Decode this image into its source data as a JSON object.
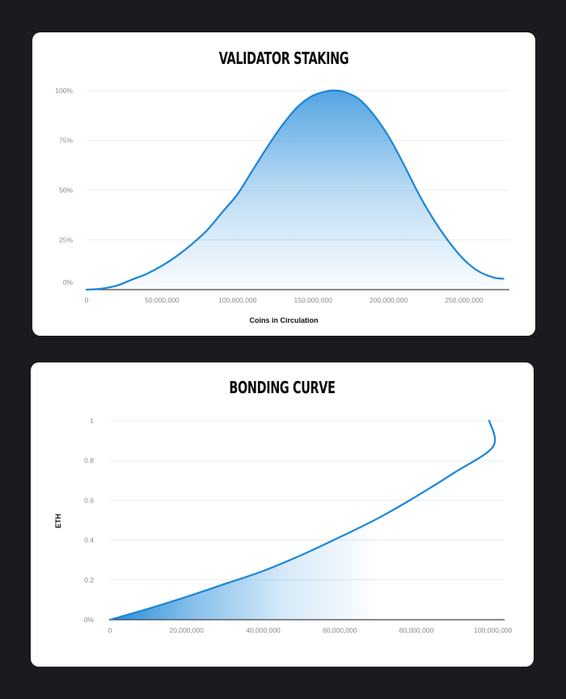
{
  "chart_data": [
    {
      "type": "area",
      "title": "VALIDATOR STAKING",
      "xlabel": "Coins in Circulation",
      "ylabel": "",
      "xlim": [
        0,
        280000000
      ],
      "ylim": [
        0,
        100
      ],
      "x_ticks": [
        0,
        50000000,
        100000000,
        150000000,
        200000000,
        250000000
      ],
      "x_tick_labels": [
        "0",
        "50,000,000",
        "100,000,000",
        "150,000,000",
        "200,000,000",
        "250,000,000"
      ],
      "y_ticks": [
        0,
        25,
        50,
        75,
        100
      ],
      "y_tick_labels": [
        "0%",
        "25%",
        "50%",
        "75%",
        "100%"
      ],
      "grid": true,
      "series": [
        {
          "color": "#1a86d8",
          "x": [
            0,
            10000000,
            20000000,
            30000000,
            40000000,
            50000000,
            60000000,
            70000000,
            80000000,
            90000000,
            100000000,
            110000000,
            120000000,
            130000000,
            140000000,
            150000000,
            160000000,
            165000000,
            170000000,
            180000000,
            190000000,
            200000000,
            210000000,
            220000000,
            230000000,
            240000000,
            250000000,
            260000000,
            270000000,
            276000000
          ],
          "y": [
            0,
            0.5,
            2,
            5,
            8,
            12,
            17,
            23,
            30,
            39,
            48,
            60,
            72,
            83,
            92,
            97.5,
            99.8,
            100,
            99.5,
            96,
            88,
            77,
            63,
            48,
            35,
            24,
            15,
            9,
            6,
            5.5
          ]
        }
      ]
    },
    {
      "type": "area",
      "title": "BONDING CURVE",
      "xlabel": "",
      "ylabel": "ETH",
      "xlim": [
        0,
        103000000
      ],
      "ylim": [
        0,
        1
      ],
      "x_ticks": [
        0,
        20000000,
        40000000,
        60000000,
        80000000,
        100000000
      ],
      "x_tick_labels": [
        "0",
        "20,000,000",
        "40,000,000",
        "60,000,000",
        "80,000,000",
        "100,000,000"
      ],
      "y_ticks": [
        0,
        0.2,
        0.4,
        0.6,
        0.8,
        1
      ],
      "y_tick_labels": [
        "0%",
        "0.2",
        "0.4",
        "0.6",
        "0.8",
        "1"
      ],
      "grid": true,
      "series": [
        {
          "color": "#1a86d8",
          "x": [
            0,
            10000000,
            20000000,
            30000000,
            40000000,
            50000000,
            60000000,
            70000000,
            80000000,
            90000000,
            100000000
          ],
          "y": [
            0,
            0.055,
            0.115,
            0.18,
            0.245,
            0.325,
            0.415,
            0.51,
            0.62,
            0.74,
            0.87
          ]
        }
      ],
      "end_point": [
        99000000,
        1
      ]
    }
  ]
}
